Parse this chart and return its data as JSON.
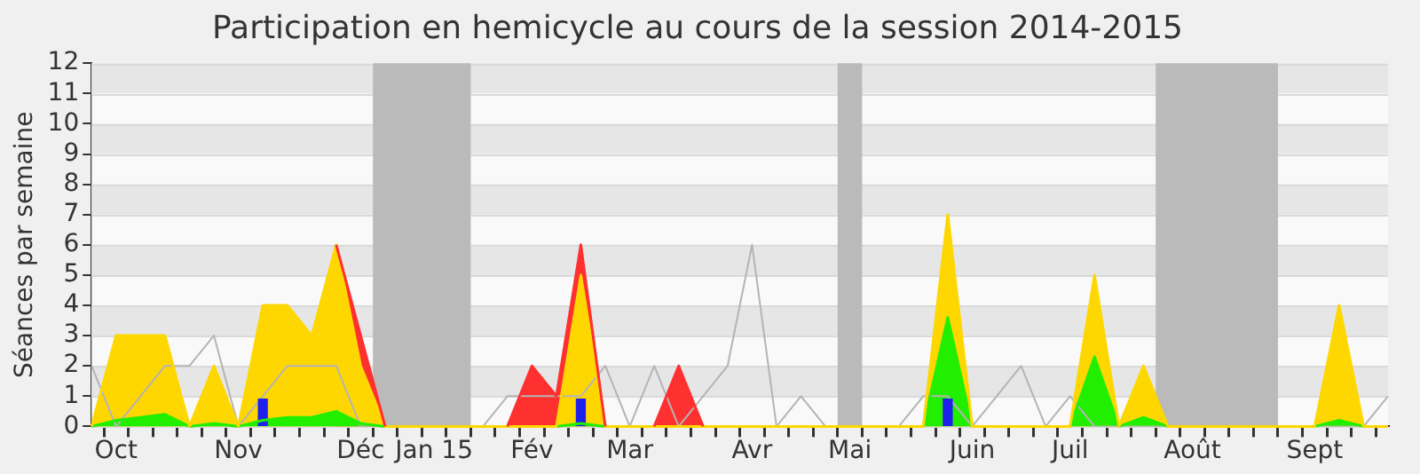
{
  "chart_data": {
    "type": "area",
    "title": "Participation en hemicycle au cours de la session 2014-2015",
    "ylabel": "Séances par semaine",
    "categories": [
      null,
      "Oct",
      null,
      null,
      null,
      null,
      "Nov",
      null,
      null,
      null,
      null,
      "Déc",
      null,
      null,
      "Jan 15",
      null,
      null,
      null,
      "Fév",
      null,
      null,
      null,
      "Mar",
      null,
      null,
      null,
      null,
      "Avr",
      null,
      null,
      null,
      "Mai",
      null,
      null,
      null,
      null,
      "Juin",
      null,
      null,
      null,
      "Juil",
      null,
      null,
      null,
      null,
      "Août",
      null,
      null,
      null,
      null,
      "Sept",
      null,
      null,
      null
    ],
    "ylim": [
      0,
      12
    ],
    "yticks": [
      0,
      1,
      2,
      3,
      4,
      5,
      6,
      7,
      8,
      9,
      10,
      11,
      12
    ],
    "grid": "y",
    "legend": false,
    "marker": "none",
    "series": [
      {
        "type": "bar",
        "color": "#2020ee",
        "values": [
          null,
          null,
          null,
          null,
          null,
          null,
          null,
          0.9,
          null,
          null,
          null,
          null,
          null,
          null,
          null,
          null,
          null,
          null,
          null,
          null,
          0.9,
          null,
          null,
          null,
          null,
          null,
          null,
          null,
          null,
          null,
          null,
          null,
          null,
          null,
          null,
          0.9,
          null,
          null,
          null,
          null,
          null,
          null,
          null,
          null,
          null,
          null,
          null,
          null,
          null,
          null,
          null,
          null,
          null,
          null
        ]
      },
      {
        "type": "line",
        "color": "#b4b4b4",
        "values": [
          2,
          0,
          1,
          2,
          2,
          3,
          0,
          1,
          2,
          2,
          2,
          0,
          0,
          0,
          0,
          0,
          0,
          1,
          1,
          1,
          1,
          2,
          0,
          2,
          0,
          1,
          2,
          6,
          0,
          1,
          0,
          0,
          0,
          0,
          1,
          1,
          0,
          1,
          2,
          0,
          1,
          0,
          0,
          0,
          0,
          0,
          0,
          0,
          0,
          0,
          0,
          0,
          0,
          1
        ]
      },
      {
        "color": "#22ee00",
        "values": [
          0,
          0.2,
          0.3,
          0.4,
          0,
          0.1,
          0,
          0.2,
          0.3,
          0.3,
          0.5,
          0.1,
          0,
          0,
          0,
          0,
          0,
          0,
          0,
          0,
          0.1,
          0,
          0,
          0,
          0,
          0,
          0,
          0,
          0,
          0,
          0,
          0,
          0,
          0,
          0,
          3.6,
          0,
          0,
          0,
          0,
          0,
          2.3,
          0,
          0.3,
          0,
          0,
          0,
          0,
          0,
          0,
          0,
          0.2,
          0,
          0
        ]
      },
      {
        "color": "#ffd700",
        "values": [
          0,
          3,
          3,
          3,
          0,
          2,
          0,
          4,
          4,
          3,
          6,
          2,
          0,
          0,
          0,
          0,
          0,
          0,
          0,
          0,
          5,
          0,
          0,
          0,
          0,
          0,
          0,
          0,
          0,
          0,
          0,
          0,
          0,
          0,
          0,
          7,
          0,
          0,
          0,
          0,
          0,
          5,
          0,
          2,
          0,
          0,
          0,
          0,
          0,
          0,
          0,
          4,
          0,
          0
        ]
      },
      {
        "color": "#ff3030",
        "values": [
          null,
          null,
          null,
          null,
          null,
          null,
          null,
          null,
          null,
          null,
          6,
          3,
          0,
          null,
          null,
          null,
          null,
          0,
          2,
          1,
          6,
          0,
          null,
          0,
          2,
          0,
          null,
          null,
          null,
          null,
          null,
          null,
          null,
          null,
          null,
          null,
          null,
          null,
          null,
          null,
          null,
          null,
          null,
          null,
          null,
          null,
          null,
          null,
          null,
          null,
          null,
          null,
          null,
          null
        ]
      }
    ]
  }
}
